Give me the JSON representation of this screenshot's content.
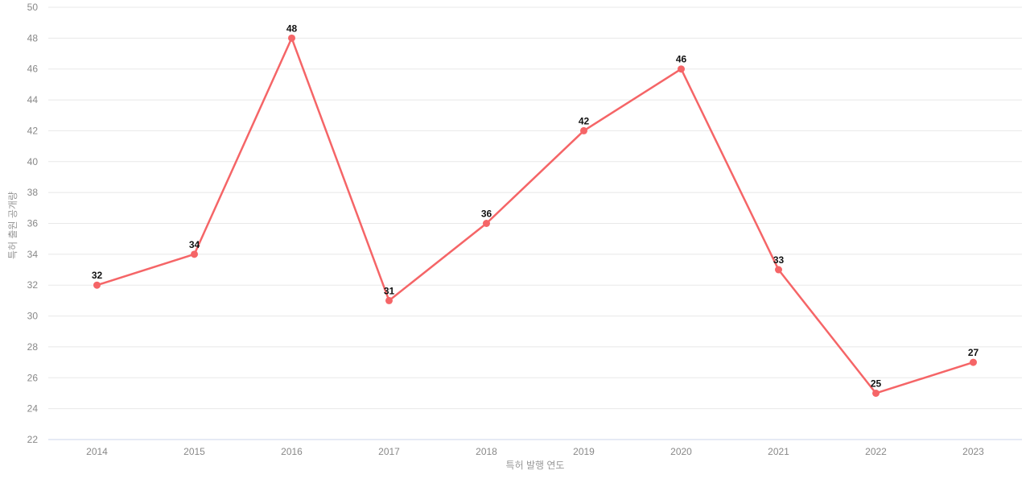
{
  "chart_data": {
    "type": "line",
    "title": "",
    "categories": [
      "2014",
      "2015",
      "2016",
      "2017",
      "2018",
      "2019",
      "2020",
      "2021",
      "2022",
      "2023"
    ],
    "series": [
      {
        "name": "특허 출원 공개량",
        "values": [
          32,
          34,
          48,
          31,
          36,
          42,
          46,
          33,
          25,
          27
        ]
      }
    ],
    "xlabel": "특허 발행 연도",
    "ylabel": "특허 출원 공개량",
    "ylim": [
      22,
      50
    ],
    "ytick_step": 2,
    "yticks": [
      22,
      24,
      26,
      28,
      30,
      32,
      34,
      36,
      38,
      40,
      42,
      44,
      46,
      48,
      50
    ],
    "grid": true,
    "legend_visible": false,
    "point_labels_visible": true,
    "colors": {
      "line": "#f56567",
      "marker": "#f56567",
      "point_label": "#111111",
      "grid": "#e8e8e8",
      "axis_line": "#ccd6eb",
      "tick_text": "#888888",
      "axis_title_text": "#999999",
      "background": "#ffffff"
    }
  }
}
